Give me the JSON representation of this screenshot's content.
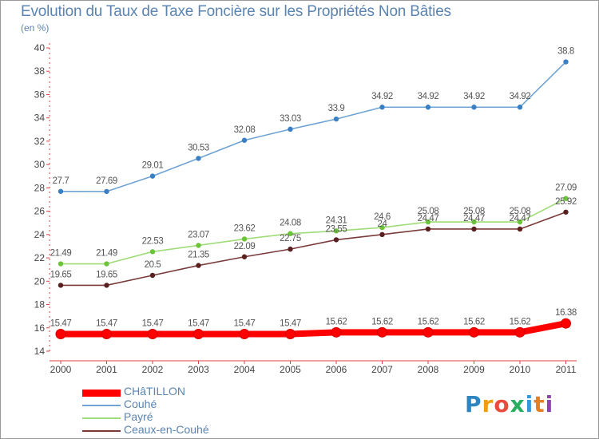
{
  "header": {
    "title": "Evolution du Taux de Taxe Foncière sur les Propriétés Non Bâties",
    "subtitle": "(en %)"
  },
  "logo": {
    "text": "Proxiti",
    "letters": [
      "P",
      "r",
      "o",
      "x",
      "i",
      "t",
      "i"
    ],
    "colors": [
      "#2e86c1",
      "#f39c12",
      "#e74c3c",
      "#27ae60",
      "#3498db",
      "#e67e22",
      "#8e44ad"
    ]
  },
  "chart_data": {
    "type": "line",
    "title": "Evolution du Taux de Taxe Foncière sur les Propriétés Non Bâties",
    "subtitle": "(en %)",
    "xlabel": "",
    "ylabel": "",
    "ylim": [
      14,
      40
    ],
    "ytick_step": 2,
    "grid": false,
    "legend_position": "bottom-left",
    "categories": [
      "2000",
      "2001",
      "2002",
      "2003",
      "2004",
      "2005",
      "2006",
      "2007",
      "2008",
      "2009",
      "2010",
      "2011"
    ],
    "series": [
      {
        "name": "CHâTILLON",
        "color": "#ff0000",
        "marker_color": "#ff0000",
        "line_style": "thick",
        "values": [
          15.47,
          15.47,
          15.47,
          15.47,
          15.47,
          15.47,
          15.62,
          15.62,
          15.62,
          15.62,
          15.62,
          16.38
        ],
        "labels": [
          "15.47",
          "15.47",
          "15.47",
          "15.47",
          "15.47",
          "15.47",
          "15.62",
          "15.62",
          "15.62",
          "15.62",
          "15.62",
          "16.38"
        ]
      },
      {
        "name": "Couhé",
        "color": "#6fa3d4",
        "marker_color": "#3a7fc4",
        "line_style": "thin",
        "values": [
          27.7,
          27.69,
          29.01,
          30.53,
          32.08,
          33.03,
          33.9,
          34.92,
          34.92,
          34.92,
          34.92,
          38.8
        ],
        "labels": [
          "27.7",
          "27.69",
          "29.01",
          "30.53",
          "32.08",
          "33.03",
          "33.9",
          "34.92",
          "34.92",
          "34.92",
          "34.92",
          "38.8"
        ]
      },
      {
        "name": "Payré",
        "color": "#9fdc77",
        "marker_color": "#6cc43a",
        "line_style": "thin",
        "values": [
          21.49,
          21.49,
          22.53,
          23.07,
          23.62,
          24.08,
          24.31,
          24.6,
          25.08,
          25.08,
          25.08,
          27.09
        ],
        "labels": [
          "21.49",
          "21.49",
          "22.53",
          "23.07",
          "23.62",
          "24.08",
          "24.31",
          "24.6",
          "25.08",
          "25.08",
          "25.08",
          "27.09"
        ]
      },
      {
        "name": "Ceaux-en-Couhé",
        "color": "#7a3a3a",
        "marker_color": "#5a1f1f",
        "line_style": "thin",
        "values": [
          19.65,
          19.65,
          20.5,
          21.35,
          22.09,
          22.75,
          23.55,
          24.0,
          24.47,
          24.47,
          24.47,
          25.92
        ],
        "labels": [
          "19.65",
          "19.65",
          "20.5",
          "21.35",
          "22.09",
          "22.75",
          "23.55",
          "24",
          "24.47",
          "24.47",
          "24.47",
          "25.92"
        ]
      }
    ]
  }
}
